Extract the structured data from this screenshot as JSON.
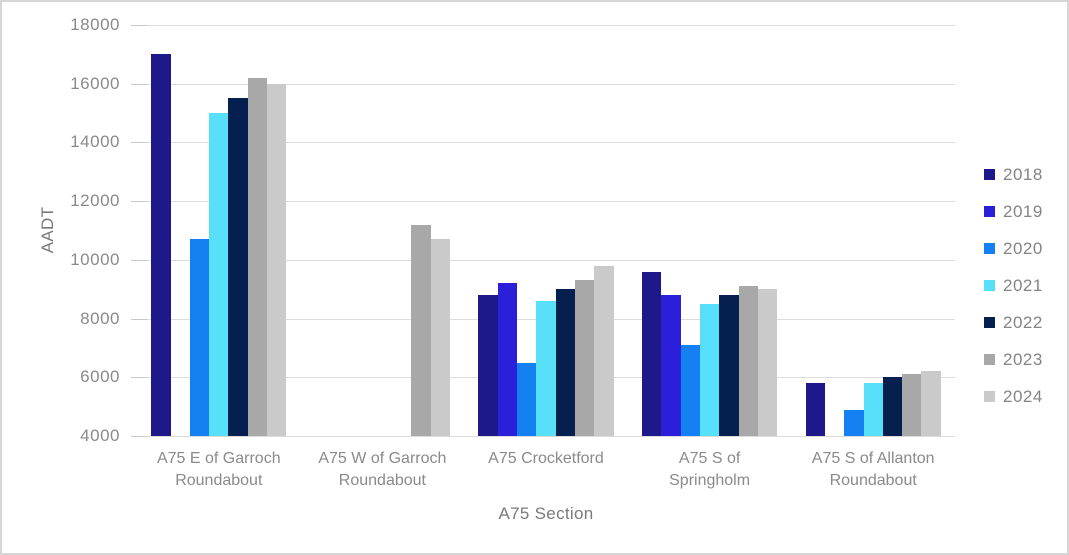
{
  "chart_data": {
    "type": "bar",
    "title": "",
    "xlabel": "A75 Section",
    "ylabel": "AADT",
    "ylim": [
      4000,
      18000
    ],
    "ytick_step": 2000,
    "ytick_labels": [
      "4000",
      "6000",
      "8000",
      "10000",
      "12000",
      "14000",
      "16000",
      "18000"
    ],
    "grid": "horizontal",
    "legend_position": "right",
    "categories": [
      "A75 E of Garroch Roundabout",
      "A75 W of Garroch Roundabout",
      "A75 Crocketford",
      "A75 S of Springholm",
      "A75 S of Allanton Roundabout"
    ],
    "category_label_lines": [
      [
        "A75 E of Garroch",
        "Roundabout"
      ],
      [
        "A75 W of Garroch",
        "Roundabout"
      ],
      [
        "A75 Crocketford"
      ],
      [
        "A75 S of",
        "Springholm"
      ],
      [
        "A75 S of Allanton",
        "Roundabout"
      ]
    ],
    "series": [
      {
        "name": "2018",
        "color": "#1E198A",
        "values": [
          17000,
          null,
          8800,
          9600,
          5800
        ]
      },
      {
        "name": "2019",
        "color": "#2B1FD9",
        "values": [
          null,
          null,
          9200,
          8800,
          null
        ]
      },
      {
        "name": "2020",
        "color": "#1480F2",
        "values": [
          10700,
          null,
          6500,
          7100,
          4900
        ]
      },
      {
        "name": "2021",
        "color": "#58E0FA",
        "values": [
          15000,
          null,
          8600,
          8500,
          5800
        ]
      },
      {
        "name": "2022",
        "color": "#05204F",
        "values": [
          15500,
          null,
          9000,
          8800,
          6000
        ]
      },
      {
        "name": "2023",
        "color": "#A8A8A8",
        "values": [
          16200,
          11200,
          9300,
          9100,
          6100
        ]
      },
      {
        "name": "2024",
        "color": "#CACACA",
        "values": [
          16000,
          10700,
          9800,
          9000,
          6200
        ]
      }
    ]
  }
}
